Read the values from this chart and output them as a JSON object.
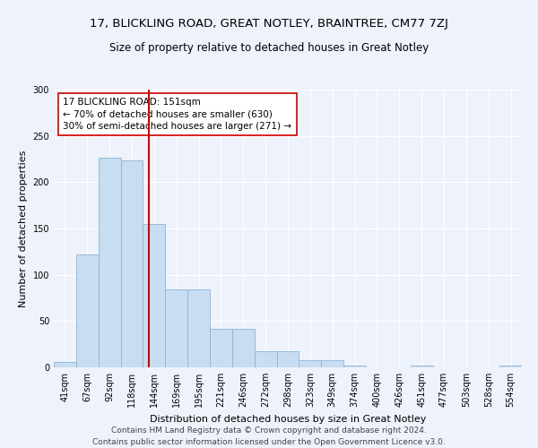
{
  "title": "17, BLICKLING ROAD, GREAT NOTLEY, BRAINTREE, CM77 7ZJ",
  "subtitle": "Size of property relative to detached houses in Great Notley",
  "xlabel": "Distribution of detached houses by size in Great Notley",
  "ylabel": "Number of detached properties",
  "bin_labels": [
    "41sqm",
    "67sqm",
    "92sqm",
    "118sqm",
    "144sqm",
    "169sqm",
    "195sqm",
    "221sqm",
    "246sqm",
    "272sqm",
    "298sqm",
    "323sqm",
    "349sqm",
    "374sqm",
    "400sqm",
    "426sqm",
    "451sqm",
    "477sqm",
    "503sqm",
    "528sqm",
    "554sqm"
  ],
  "bar_values": [
    6,
    122,
    226,
    224,
    155,
    84,
    84,
    42,
    42,
    17,
    17,
    8,
    8,
    2,
    0,
    0,
    2,
    0,
    0,
    0,
    2
  ],
  "bar_color": "#c8ddf2",
  "bar_edge_color": "#8ab4d8",
  "vline_color": "#cc0000",
  "annotation_text": "17 BLICKLING ROAD: 151sqm\n← 70% of detached houses are smaller (630)\n30% of semi-detached houses are larger (271) →",
  "annotation_box_color": "#ffffff",
  "annotation_box_edge": "#cc0000",
  "ylim": [
    0,
    300
  ],
  "yticks": [
    0,
    50,
    100,
    150,
    200,
    250,
    300
  ],
  "footer_text": "Contains HM Land Registry data © Crown copyright and database right 2024.\nContains public sector information licensed under the Open Government Licence v3.0.",
  "background_color": "#eef2fb",
  "grid_color": "#ffffff",
  "title_fontsize": 9.5,
  "subtitle_fontsize": 8.5,
  "axis_label_fontsize": 8,
  "tick_fontsize": 7,
  "annotation_fontsize": 7.5,
  "footer_fontsize": 6.5
}
